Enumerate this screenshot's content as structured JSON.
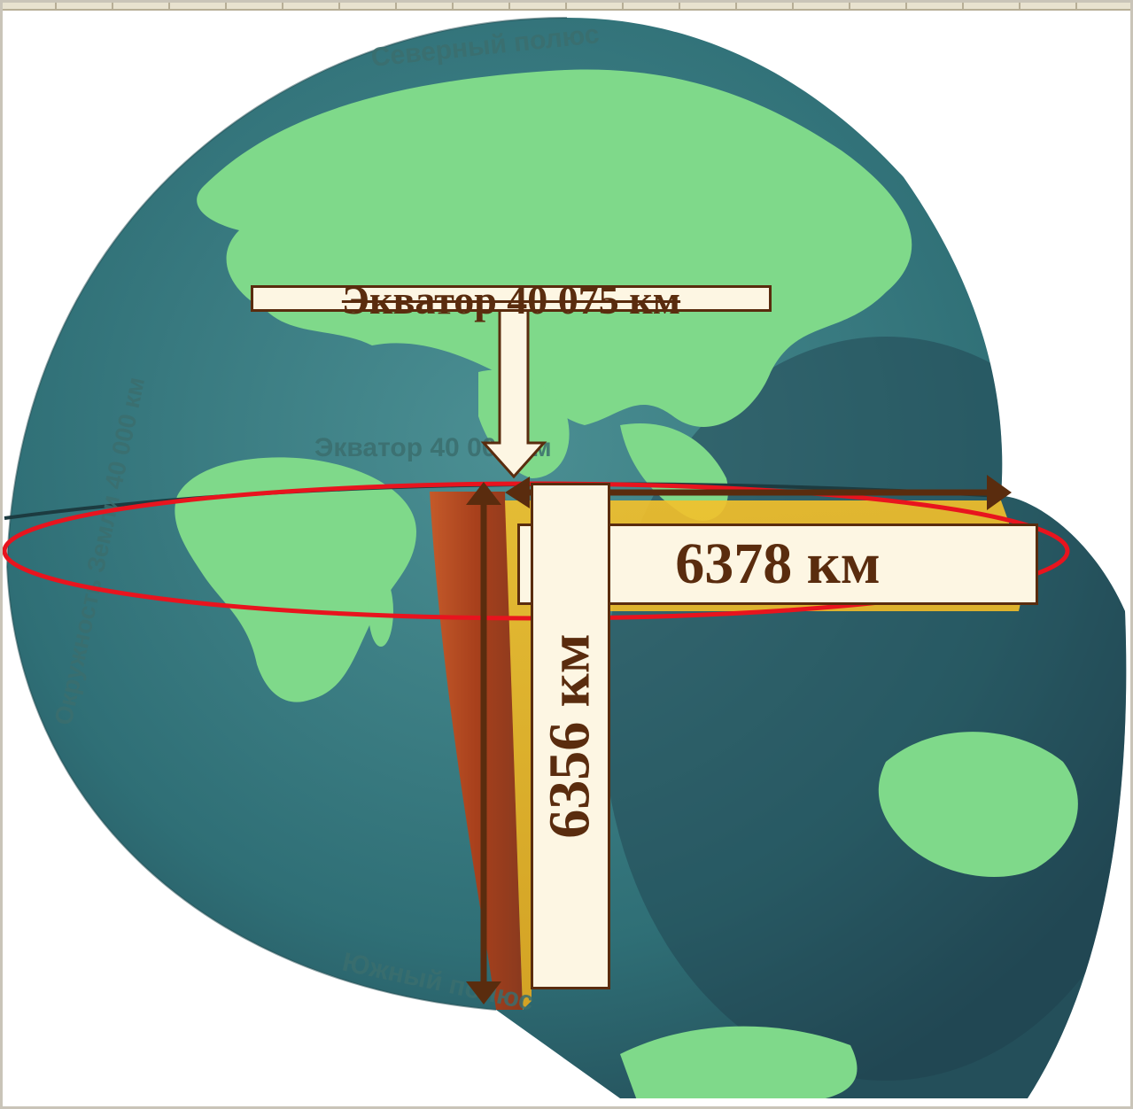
{
  "labels": {
    "equator_length": "Экватор 40 075 км",
    "equatorial_radius": "6378 км",
    "polar_radius": "6356 км"
  },
  "map_labels": {
    "north_pole": "Северный полюс",
    "equator": "Экватор 40 000 км",
    "circumference": "Окружность Земли 40 000 км",
    "south_pole": "Южный полюс"
  },
  "colors": {
    "box_fill": "#fdf6e3",
    "box_border": "#5a2c0e",
    "arrow": "#5a2c0e",
    "ellipse": "#e8141e",
    "ocean": "#2f6f76",
    "land": "#7fd98a"
  }
}
